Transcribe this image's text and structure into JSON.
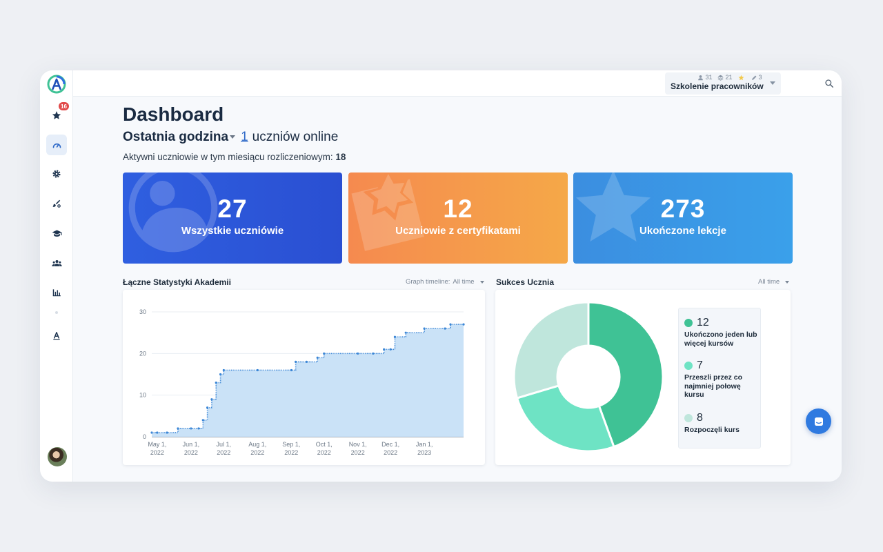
{
  "topbar": {
    "course_stats": {
      "users": "31",
      "courses": "21",
      "stars": "",
      "edits": "3"
    },
    "course_name": "Szkolenie pracowników"
  },
  "sidebar": {
    "notifications_badge": "16",
    "items": [
      "star",
      "dashboard",
      "settings",
      "brush",
      "courses",
      "users",
      "stats",
      "typography"
    ]
  },
  "header": {
    "title": "Dashboard",
    "period": "Ostatnia godzina",
    "online_count": "1",
    "online_label": "uczniów online",
    "active_label": "Aktywni uczniowie w tym miesiącu rozliczeniowym:",
    "active_value": "18"
  },
  "cards": [
    {
      "value": "27",
      "label": "Wszystkie uczniówie"
    },
    {
      "value": "12",
      "label": "Uczniowie z certyfikatami"
    },
    {
      "value": "273",
      "label": "Ukończone lekcje"
    }
  ],
  "stats_section": {
    "title": "Łączne Statystyki Akademii",
    "timeline_label": "Graph timeline:",
    "timeline_value": "All time"
  },
  "success_section": {
    "title": "Sukces Ucznia",
    "timeline_value": "All time"
  },
  "colors": {
    "accent": "#2b67c7",
    "line": "#3b86d6",
    "area": "#c7e0f7",
    "donut_completed": "#3fc295",
    "donut_half": "#6ee3c4",
    "donut_started": "#bfe6dc"
  },
  "chart_data": [
    {
      "type": "area",
      "title": "",
      "xlabel": "",
      "ylabel": "",
      "x_ticks": [
        "May 1, 2022",
        "Jun 1, 2022",
        "Jul 1, 2022",
        "Aug 1, 2022",
        "Sep 1, 2022",
        "Oct 1, 2022",
        "Nov 1, 2022",
        "Dec 1, 2022",
        "Jan 1, 2023"
      ],
      "y_ticks": [
        0,
        10,
        20,
        30
      ],
      "ylim": [
        0,
        30
      ],
      "xlim": [
        "2022-04-26",
        "2023-02-06"
      ],
      "grid": true,
      "series": [
        {
          "x": [
            "2022-04-26",
            "2022-05-01",
            "2022-05-10",
            "2022-05-20",
            "2022-06-01",
            "2022-06-08",
            "2022-06-12",
            "2022-06-16",
            "2022-06-20",
            "2022-06-24",
            "2022-06-28",
            "2022-07-01",
            "2022-08-01",
            "2022-09-01",
            "2022-09-05",
            "2022-09-15",
            "2022-09-25",
            "2022-10-01",
            "2022-11-01",
            "2022-11-15",
            "2022-11-25",
            "2022-12-01",
            "2022-12-05",
            "2022-12-15",
            "2023-01-01",
            "2023-01-20",
            "2023-01-25",
            "2023-02-06"
          ],
          "values": [
            1,
            1,
            1,
            2,
            2,
            2,
            4,
            7,
            9,
            13,
            15,
            16,
            16,
            16,
            18,
            18,
            19,
            20,
            20,
            20,
            21,
            21,
            24,
            25,
            26,
            26,
            27,
            27
          ]
        }
      ]
    },
    {
      "type": "pie",
      "hole": true,
      "slices": [
        {
          "value": 12,
          "label": "Ukończono jeden lub więcej kursów",
          "color": "#3fc295"
        },
        {
          "value": 7,
          "label": "Przeszli przez co najmniej połowę kursu",
          "color": "#6ee3c4"
        },
        {
          "value": 8,
          "label": "Rozpoczęli kurs",
          "color": "#bfe6dc"
        }
      ]
    }
  ]
}
